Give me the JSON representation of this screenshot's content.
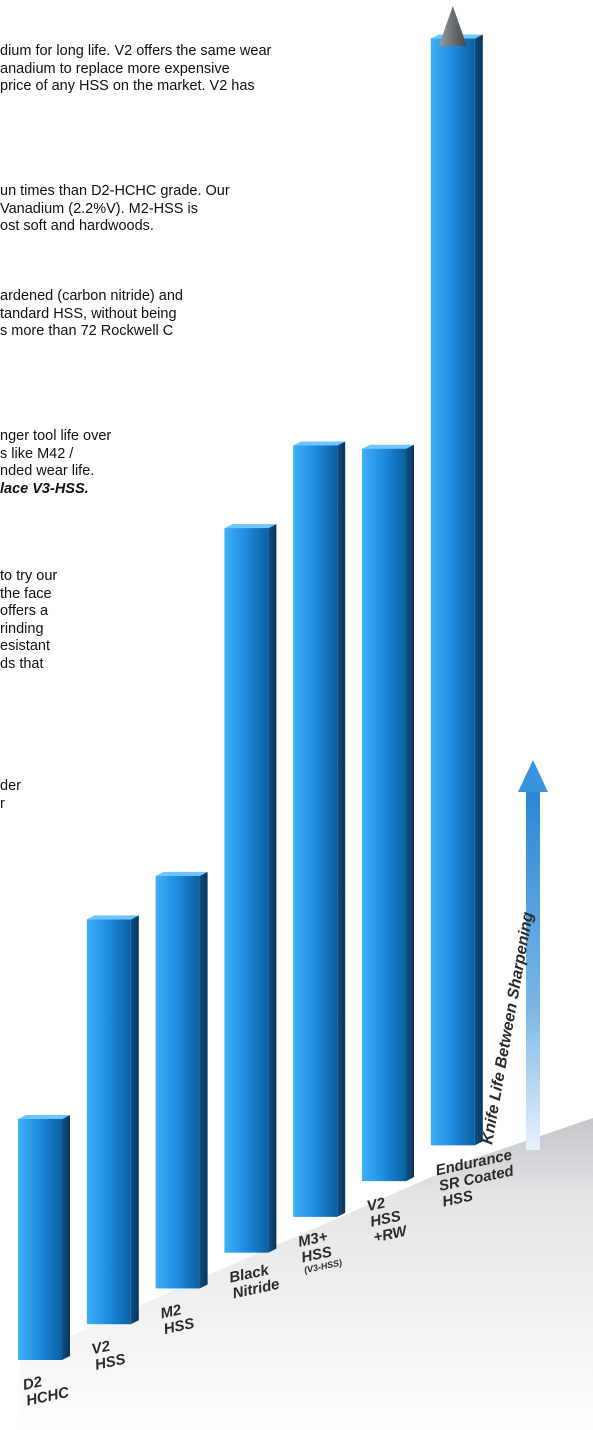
{
  "text_blocks": [
    {
      "lines": [
        "dium for long life. V2 offers the same wear",
        "anadium to replace more expensive",
        "price of any HSS on the market. V2 has"
      ]
    },
    {
      "lines": [
        "un times than D2-HCHC grade. Our",
        "Vanadium (2.2%V). M2-HSS is",
        "ost soft and hardwoods."
      ]
    },
    {
      "lines": [
        "ardened (carbon nitride) and",
        "tandard HSS, without being",
        "s more than 72 Rockwell C"
      ]
    },
    {
      "lines": [
        "nger tool life over",
        "s like M42 /",
        "nded wear life."
      ],
      "emphasis": "lace V3-HSS."
    },
    {
      "lines": [
        "to try our",
        "the face",
        "offers a",
        "rinding",
        "esistant",
        "ds that"
      ]
    },
    {
      "lines": [
        "der",
        "r"
      ]
    }
  ],
  "chart_data": {
    "type": "bar",
    "title": "",
    "xlabel": "",
    "ylabel": "Knife Life Between Sharpening",
    "grid": false,
    "categories": [
      {
        "line1": "D2",
        "line2": "HCHC",
        "line3": ""
      },
      {
        "line1": "V2",
        "line2": "HSS",
        "line3": ""
      },
      {
        "line1": "M2",
        "line2": "HSS",
        "line3": ""
      },
      {
        "line1": "Black",
        "line2": "Nitride",
        "line3": ""
      },
      {
        "line1": "M3+",
        "line2": "HSS",
        "line3": "(V3-HSS)"
      },
      {
        "line1": "V2",
        "line2": "HSS",
        "line3": "+RW"
      },
      {
        "line1": "Endurance",
        "line2": "SR Coated",
        "line3": "HSS"
      }
    ],
    "values": [
      3.5,
      5.6,
      5.7,
      9.7,
      10.3,
      9.8,
      14.6
    ],
    "ylim": [
      0,
      15
    ],
    "colors": {
      "bar_light": "#2f9ff0",
      "bar_dark": "#0a4f86",
      "bar_side": "#0d3f6a",
      "top_arrow": "#707478",
      "axis_arrow": "#4a90c8"
    }
  }
}
